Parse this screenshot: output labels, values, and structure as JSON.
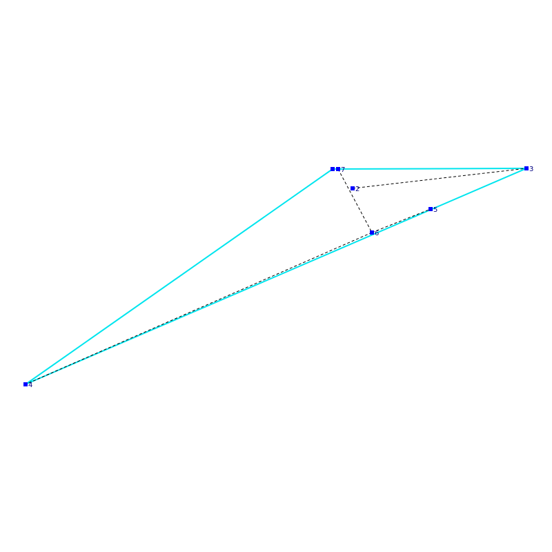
{
  "nodes": [
    {
      "label": "7"
    },
    {
      "label": "2"
    },
    {
      "label": "3"
    },
    {
      "label": "5"
    },
    {
      "label": "6"
    },
    {
      "label": "4"
    }
  ]
}
